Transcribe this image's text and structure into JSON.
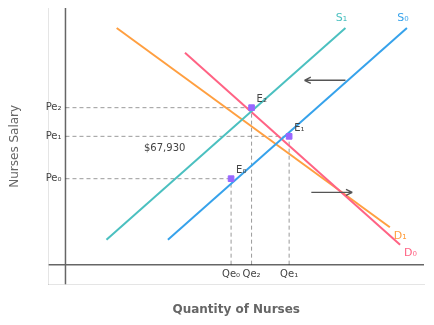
{
  "chart_data": {
    "type": "line",
    "xlabel": "Quantity of Nurses",
    "ylabel": "Nurses Salary",
    "xlim": [
      -0.5,
      10.5
    ],
    "ylim": [
      -0.8,
      10.3
    ],
    "tick_labels": false,
    "grid": false,
    "axis_lines": {
      "x": 0,
      "y": 0
    },
    "series": [
      {
        "name": "S₀",
        "x": [
          3.0,
          10.0
        ],
        "values": [
          1.0,
          9.5
        ]
      },
      {
        "name": "S₁",
        "x": [
          1.2,
          8.2
        ],
        "values": [
          1.0,
          9.5
        ]
      },
      {
        "name": "D₀",
        "x": [
          3.5,
          9.8
        ],
        "values": [
          8.5,
          0.8
        ]
      },
      {
        "name": "D₁",
        "x": [
          1.5,
          9.5
        ],
        "values": [
          9.5,
          1.5
        ]
      }
    ],
    "points": [
      {
        "name": "E₀",
        "x": 4.85,
        "y": 3.45,
        "x_label": "Qe₀",
        "y_label": "Pe₀"
      },
      {
        "name": "E₁",
        "x": 6.55,
        "y": 5.15,
        "x_label": "Qe₁",
        "y_label": "Pe₁"
      },
      {
        "name": "E₂",
        "x": 5.45,
        "y": 6.3,
        "x_label": "Qe₂",
        "y_label": "Pe₂"
      }
    ],
    "annotations": [
      {
        "text": "$67,930",
        "x": 2.3,
        "y": 4.55
      }
    ],
    "arrows": [
      {
        "from": [
          8.2,
          7.4
        ],
        "to": [
          7.0,
          7.4
        ]
      },
      {
        "from": [
          7.2,
          2.9
        ],
        "to": [
          8.4,
          2.9
        ]
      }
    ]
  }
}
